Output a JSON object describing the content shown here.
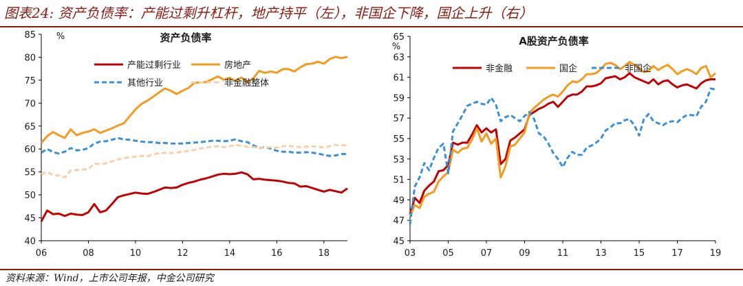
{
  "figure_title": "图表24: 资产负债率：产能过剩升杠杆，地产持平（左），非国企下降，国企上升（右）",
  "source_note": "资料来源：Wind，上市公司年报，中金公司研究",
  "chart_data": [
    {
      "type": "line",
      "title": "资产负债率",
      "ylabel": "%",
      "xlabel": "",
      "ylim": [
        40,
        85
      ],
      "yticks": [
        "40",
        "45",
        "50",
        "55",
        "60",
        "65",
        "70",
        "75",
        "80",
        "85"
      ],
      "xlim": [
        2006,
        2019
      ],
      "xticks": [
        2006,
        2008,
        2010,
        2012,
        2014,
        2016,
        2018
      ],
      "xtick_labels": [
        "06",
        "08",
        "10",
        "12",
        "14",
        "16",
        "18"
      ],
      "grid": false,
      "legend": "top-left",
      "series": [
        {
          "name": "产能过剩行业",
          "color": "#c00000",
          "dash": "solid",
          "x": [
            2006.0,
            2006.25,
            2006.5,
            2006.75,
            2007.0,
            2007.25,
            2007.5,
            2007.75,
            2008.0,
            2008.25,
            2008.5,
            2008.75,
            2009.0,
            2009.25,
            2009.5,
            2009.75,
            2010.0,
            2010.25,
            2010.5,
            2010.75,
            2011.0,
            2011.25,
            2011.5,
            2011.75,
            2012.0,
            2012.25,
            2012.5,
            2012.75,
            2013.0,
            2013.25,
            2013.5,
            2013.75,
            2014.0,
            2014.25,
            2014.5,
            2014.75,
            2015.0,
            2015.25,
            2015.5,
            2015.75,
            2016.0,
            2016.25,
            2016.5,
            2016.75,
            2017.0,
            2017.25,
            2017.5,
            2017.75,
            2018.0,
            2018.25,
            2018.5,
            2018.75,
            2019.0
          ],
          "values": [
            44.2,
            46.6,
            45.8,
            45.9,
            45.4,
            45.9,
            45.7,
            45.6,
            46.2,
            48.0,
            46.2,
            46.6,
            48.0,
            49.5,
            49.9,
            50.2,
            50.5,
            50.3,
            50.2,
            50.6,
            51.1,
            51.6,
            51.5,
            51.6,
            52.2,
            52.6,
            52.9,
            53.3,
            53.6,
            54.0,
            54.4,
            54.6,
            54.5,
            54.6,
            54.9,
            54.5,
            53.4,
            53.5,
            53.3,
            53.2,
            53.1,
            52.9,
            52.6,
            52.5,
            51.8,
            51.9,
            51.5,
            51.1,
            50.7,
            51.1,
            50.8,
            50.5,
            51.4
          ]
        },
        {
          "name": "房地产",
          "color": "#f59a1c",
          "dash": "solid",
          "x": [
            2006.0,
            2006.25,
            2006.5,
            2006.75,
            2007.0,
            2007.25,
            2007.5,
            2007.75,
            2008.0,
            2008.25,
            2008.5,
            2008.75,
            2009.0,
            2009.25,
            2009.5,
            2009.75,
            2010.0,
            2010.25,
            2010.5,
            2010.75,
            2011.0,
            2011.25,
            2011.5,
            2011.75,
            2012.0,
            2012.25,
            2012.5,
            2012.75,
            2013.0,
            2013.25,
            2013.5,
            2013.75,
            2014.0,
            2014.25,
            2014.5,
            2014.75,
            2015.0,
            2015.25,
            2015.5,
            2015.75,
            2016.0,
            2016.25,
            2016.5,
            2016.75,
            2017.0,
            2017.25,
            2017.5,
            2017.75,
            2018.0,
            2018.25,
            2018.5,
            2018.75,
            2019.0
          ],
          "values": [
            61.3,
            62.8,
            63.7,
            63.0,
            62.4,
            64.3,
            63.0,
            63.5,
            63.8,
            64.3,
            63.5,
            64.0,
            64.5,
            65.1,
            65.6,
            67.1,
            68.6,
            69.8,
            70.5,
            71.4,
            72.3,
            73.2,
            72.7,
            72.0,
            72.7,
            73.3,
            74.4,
            74.5,
            74.6,
            75.2,
            75.8,
            75.1,
            75.5,
            74.8,
            75.6,
            74.6,
            75.4,
            77.0,
            76.6,
            76.9,
            76.6,
            77.4,
            77.4,
            76.9,
            77.8,
            78.5,
            78.6,
            79.0,
            78.6,
            79.6,
            80.1,
            79.8,
            80.1
          ]
        },
        {
          "name": "其他行业",
          "color": "#3a8fd8",
          "dash": "dashed",
          "x": [
            2006.0,
            2006.25,
            2006.5,
            2006.75,
            2007.0,
            2007.25,
            2007.5,
            2007.75,
            2008.0,
            2008.25,
            2008.5,
            2008.75,
            2009.0,
            2009.25,
            2009.5,
            2009.75,
            2010.0,
            2010.25,
            2010.5,
            2010.75,
            2011.0,
            2011.25,
            2011.5,
            2011.75,
            2012.0,
            2012.25,
            2012.5,
            2012.75,
            2013.0,
            2013.25,
            2013.5,
            2013.75,
            2014.0,
            2014.25,
            2014.5,
            2014.75,
            2015.0,
            2015.25,
            2015.5,
            2015.75,
            2016.0,
            2016.25,
            2016.5,
            2016.75,
            2017.0,
            2017.25,
            2017.5,
            2017.75,
            2018.0,
            2018.25,
            2018.5,
            2018.75,
            2019.0
          ],
          "values": [
            59.2,
            60.0,
            59.3,
            59.0,
            59.4,
            60.2,
            59.7,
            59.8,
            60.2,
            61.2,
            61.6,
            61.7,
            62.0,
            62.4,
            62.1,
            62.0,
            61.8,
            61.6,
            61.5,
            61.5,
            61.3,
            61.3,
            61.2,
            61.2,
            61.2,
            61.3,
            61.4,
            61.5,
            61.6,
            61.8,
            61.8,
            61.7,
            61.8,
            62.1,
            61.7,
            61.5,
            60.8,
            60.2,
            60.4,
            60.1,
            59.6,
            59.4,
            59.4,
            59.2,
            59.2,
            59.3,
            59.2,
            59.0,
            58.7,
            58.5,
            58.6,
            58.9,
            58.9
          ]
        },
        {
          "name": "非金融整体",
          "color": "#f8cfa8",
          "dash": "dashed",
          "x": [
            2006.0,
            2006.25,
            2006.5,
            2006.75,
            2007.0,
            2007.25,
            2007.5,
            2007.75,
            2008.0,
            2008.25,
            2008.5,
            2008.75,
            2009.0,
            2009.25,
            2009.5,
            2009.75,
            2010.0,
            2010.25,
            2010.5,
            2010.75,
            2011.0,
            2011.25,
            2011.5,
            2011.75,
            2012.0,
            2012.25,
            2012.5,
            2012.75,
            2013.0,
            2013.25,
            2013.5,
            2013.75,
            2014.0,
            2014.25,
            2014.5,
            2014.75,
            2015.0,
            2015.25,
            2015.5,
            2015.75,
            2016.0,
            2016.25,
            2016.5,
            2016.75,
            2017.0,
            2017.25,
            2017.5,
            2017.75,
            2018.0,
            2018.25,
            2018.5,
            2018.75,
            2019.0
          ],
          "values": [
            54.5,
            55.0,
            54.3,
            54.2,
            53.8,
            55.3,
            55.4,
            55.5,
            55.6,
            56.8,
            56.7,
            56.9,
            57.3,
            57.7,
            58.0,
            58.2,
            58.3,
            58.5,
            58.4,
            58.8,
            59.1,
            59.2,
            59.1,
            59.2,
            59.4,
            59.6,
            59.8,
            60.1,
            60.3,
            60.5,
            60.6,
            60.4,
            60.6,
            60.9,
            60.7,
            60.5,
            60.4,
            60.3,
            60.3,
            60.4,
            60.3,
            60.6,
            60.7,
            60.5,
            60.4,
            60.5,
            60.6,
            60.5,
            60.3,
            60.6,
            60.9,
            60.8,
            60.9
          ]
        }
      ]
    },
    {
      "type": "line",
      "title": "A股资产负债率",
      "ylabel": "%",
      "xlabel": "",
      "ylim": [
        45,
        65
      ],
      "yticks": [
        "45",
        "47",
        "49",
        "51",
        "53",
        "55",
        "57",
        "59",
        "61",
        "63",
        "65"
      ],
      "xlim": [
        2003,
        2019
      ],
      "xticks": [
        2003,
        2005,
        2007,
        2009,
        2011,
        2013,
        2015,
        2017,
        2019
      ],
      "xtick_labels": [
        "03",
        "05",
        "07",
        "09",
        "11",
        "13",
        "15",
        "17",
        "19"
      ],
      "grid": false,
      "legend": "top",
      "series": [
        {
          "name": "非金融",
          "color": "#c00000",
          "dash": "solid",
          "x": [
            2003.0,
            2003.25,
            2003.5,
            2003.75,
            2004.0,
            2004.25,
            2004.5,
            2004.75,
            2005.0,
            2005.25,
            2005.5,
            2005.75,
            2006.0,
            2006.25,
            2006.5,
            2006.75,
            2007.0,
            2007.25,
            2007.5,
            2007.75,
            2008.0,
            2008.25,
            2008.5,
            2008.75,
            2009.0,
            2009.25,
            2009.5,
            2009.75,
            2010.0,
            2010.25,
            2010.5,
            2010.75,
            2011.0,
            2011.25,
            2011.5,
            2011.75,
            2012.0,
            2012.25,
            2012.5,
            2012.75,
            2013.0,
            2013.25,
            2013.5,
            2013.75,
            2014.0,
            2014.25,
            2014.5,
            2014.75,
            2015.0,
            2015.25,
            2015.5,
            2015.75,
            2016.0,
            2016.25,
            2016.5,
            2016.75,
            2017.0,
            2017.25,
            2017.5,
            2017.75,
            2018.0,
            2018.25,
            2018.5,
            2018.75,
            2019.0
          ],
          "values": [
            47.6,
            49.2,
            48.7,
            49.9,
            50.4,
            50.8,
            51.8,
            51.9,
            52.4,
            54.6,
            54.4,
            54.6,
            54.6,
            55.4,
            56.3,
            55.6,
            56.0,
            55.6,
            55.9,
            52.5,
            53.0,
            54.8,
            55.1,
            55.5,
            55.9,
            57.3,
            57.6,
            57.9,
            58.1,
            58.4,
            58.6,
            58.1,
            58.6,
            59.1,
            59.3,
            59.3,
            59.6,
            60.1,
            60.1,
            60.2,
            60.4,
            60.9,
            61.0,
            61.1,
            60.8,
            61.0,
            61.4,
            61.0,
            60.8,
            60.6,
            60.4,
            60.8,
            60.3,
            60.6,
            60.7,
            60.3,
            60.0,
            60.2,
            60.3,
            60.1,
            59.9,
            60.4,
            60.7,
            60.8,
            60.8
          ]
        },
        {
          "name": "国企",
          "color": "#f59a1c",
          "dash": "solid",
          "x": [
            2003.0,
            2003.25,
            2003.5,
            2003.75,
            2004.0,
            2004.25,
            2004.5,
            2004.75,
            2005.0,
            2005.25,
            2005.5,
            2005.75,
            2006.0,
            2006.25,
            2006.5,
            2006.75,
            2007.0,
            2007.25,
            2007.5,
            2007.75,
            2008.0,
            2008.25,
            2008.5,
            2008.75,
            2009.0,
            2009.25,
            2009.5,
            2009.75,
            2010.0,
            2010.25,
            2010.5,
            2010.75,
            2011.0,
            2011.25,
            2011.5,
            2011.75,
            2012.0,
            2012.25,
            2012.5,
            2012.75,
            2013.0,
            2013.25,
            2013.5,
            2013.75,
            2014.0,
            2014.25,
            2014.5,
            2014.75,
            2015.0,
            2015.25,
            2015.5,
            2015.75,
            2016.0,
            2016.25,
            2016.5,
            2016.75,
            2017.0,
            2017.25,
            2017.5,
            2017.75,
            2018.0,
            2018.25,
            2018.5,
            2018.75,
            2019.0
          ],
          "values": [
            47.4,
            48.5,
            48.2,
            49.3,
            49.6,
            49.8,
            50.8,
            51.3,
            51.7,
            53.9,
            53.6,
            54.0,
            54.1,
            54.9,
            56.0,
            54.7,
            55.5,
            54.5,
            55.0,
            51.2,
            52.3,
            54.2,
            54.4,
            55.0,
            55.6,
            57.5,
            58.0,
            58.4,
            58.8,
            59.1,
            59.3,
            59.1,
            59.6,
            60.2,
            60.6,
            60.5,
            60.8,
            61.3,
            61.3,
            61.4,
            61.8,
            62.3,
            62.4,
            62.2,
            61.8,
            62.1,
            62.5,
            62.2,
            61.9,
            61.5,
            61.6,
            62.1,
            61.7,
            62.0,
            62.2,
            61.8,
            61.3,
            61.6,
            61.8,
            61.6,
            61.3,
            61.9,
            62.1,
            61.0,
            61.4
          ]
        },
        {
          "name": "非国企",
          "color": "#3a8fd8",
          "dash": "dashed",
          "x": [
            2003.0,
            2003.25,
            2003.5,
            2003.75,
            2004.0,
            2004.25,
            2004.5,
            2004.75,
            2005.0,
            2005.25,
            2005.5,
            2005.75,
            2006.0,
            2006.25,
            2006.5,
            2006.75,
            2007.0,
            2007.25,
            2007.5,
            2007.75,
            2008.0,
            2008.25,
            2008.5,
            2008.75,
            2009.0,
            2009.25,
            2009.5,
            2009.75,
            2010.0,
            2010.25,
            2010.5,
            2010.75,
            2011.0,
            2011.25,
            2011.5,
            2011.75,
            2012.0,
            2012.25,
            2012.5,
            2012.75,
            2013.0,
            2013.25,
            2013.5,
            2013.75,
            2014.0,
            2014.25,
            2014.5,
            2014.75,
            2015.0,
            2015.25,
            2015.5,
            2015.75,
            2016.0,
            2016.25,
            2016.5,
            2016.75,
            2017.0,
            2017.25,
            2017.5,
            2017.75,
            2018.0,
            2018.25,
            2018.5,
            2018.75,
            2019.0
          ],
          "values": [
            46.6,
            50.3,
            51.2,
            52.6,
            51.9,
            53.1,
            54.1,
            54.5,
            51.6,
            55.7,
            56.5,
            57.3,
            58.2,
            58.4,
            58.6,
            58.4,
            58.3,
            59.0,
            58.3,
            56.7,
            57.1,
            57.3,
            57.0,
            56.7,
            57.2,
            57.6,
            56.9,
            55.5,
            55.2,
            54.5,
            53.6,
            53.0,
            52.2,
            53.1,
            53.7,
            53.4,
            53.4,
            54.1,
            54.3,
            54.6,
            55.0,
            55.8,
            56.1,
            56.5,
            56.5,
            56.8,
            56.9,
            56.3,
            55.3,
            56.9,
            57.4,
            56.7,
            56.5,
            56.3,
            56.6,
            56.7,
            56.6,
            57.0,
            57.3,
            57.3,
            57.2,
            58.1,
            58.6,
            59.9,
            59.8
          ]
        }
      ]
    }
  ]
}
